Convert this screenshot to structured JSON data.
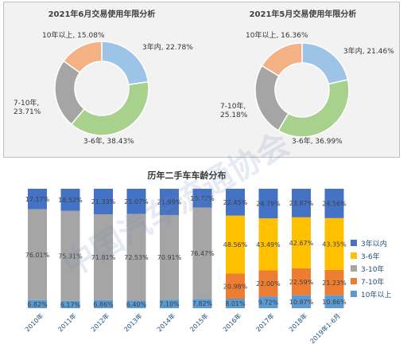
{
  "donuts": [
    {
      "title": "2021年6月交易使用年限分析",
      "slices": [
        {
          "name": "3年内",
          "value": 22.78,
          "label": "3年内, 22.78%",
          "color": "#9dc3e6"
        },
        {
          "name": "3-6年",
          "value": 38.43,
          "label": "3-6年, 38.43%",
          "color": "#a9d18e"
        },
        {
          "name": "7-10年",
          "value": 23.71,
          "label": "7-10年,\n23.71%",
          "color": "#a5a5a5"
        },
        {
          "name": "10年以上",
          "value": 15.08,
          "label": "10年以上, 15.08%",
          "color": "#f4b183"
        }
      ]
    },
    {
      "title": "2021年5月交易使用年限分析",
      "slices": [
        {
          "name": "3年内",
          "value": 21.46,
          "label": "3年内, 21.46%",
          "color": "#9dc3e6"
        },
        {
          "name": "3-6年",
          "value": 36.99,
          "label": "3-6年, 36.99%",
          "color": "#a9d18e"
        },
        {
          "name": "7-10年",
          "value": 25.18,
          "label": "7-10年,\n25.18%",
          "color": "#a5a5a5"
        },
        {
          "name": "10年以上",
          "value": 16.36,
          "label": "10年以上, 16.36%",
          "color": "#f4b183"
        }
      ]
    }
  ],
  "chart_data": {
    "type": "bar",
    "stacked": true,
    "title": "历年二手车车龄分布",
    "categories": [
      "2010年",
      "2011年",
      "2012年",
      "2013年",
      "2014年",
      "2015年",
      "2016年",
      "2017年",
      "2018年",
      "2019年1-6月"
    ],
    "series": [
      {
        "name": "10年以上",
        "color": "#5b9bd5",
        "values": [
          6.82,
          6.17,
          6.86,
          6.4,
          7.1,
          7.82,
          8.01,
          9.72,
          10.87,
          10.86
        ],
        "labels": [
          "6.82%",
          "6.17%",
          "6.86%",
          "6.40%",
          "7.10%",
          "7.82%",
          "8.01%",
          "9.72%",
          "10.87%",
          "10.86%"
        ]
      },
      {
        "name": "7-10年",
        "color": "#ed7d31",
        "values": [
          null,
          null,
          null,
          null,
          null,
          null,
          20.98,
          22.0,
          22.59,
          21.23
        ],
        "labels": [
          "",
          "",
          "",
          "",
          "",
          "",
          "20.98%",
          "22.00%",
          "22.59%",
          "21.23%"
        ]
      },
      {
        "name": "3-10年",
        "color": "#a5a5a5",
        "values": [
          76.01,
          75.31,
          71.81,
          72.53,
          70.91,
          76.47,
          null,
          null,
          null,
          null
        ],
        "labels": [
          "76.01%",
          "75.31%",
          "71.81%",
          "72.53%",
          "70.91%",
          "76.47%",
          "",
          "",
          "",
          ""
        ]
      },
      {
        "name": "3-6年",
        "color": "#ffc000",
        "values": [
          null,
          null,
          null,
          null,
          null,
          null,
          48.56,
          43.49,
          42.67,
          43.35
        ],
        "labels": [
          "",
          "",
          "",
          "",
          "",
          "",
          "48.56%",
          "43.49%",
          "42.67%",
          "43.35%"
        ]
      },
      {
        "name": "3年以内",
        "color": "#4472c4",
        "values": [
          17.17,
          18.52,
          21.33,
          21.07,
          21.99,
          15.72,
          22.45,
          24.79,
          23.87,
          24.56
        ],
        "labels": [
          "17.17%",
          "18.52%",
          "21.33%",
          "21.07%",
          "21.99%",
          "15.72%",
          "22.45%",
          "24.79%",
          "23.87%",
          "24.56%"
        ]
      }
    ],
    "legend_order": [
      "3年以内",
      "3-6年",
      "3-10年",
      "7-10年",
      "10年以上"
    ],
    "legend_position": "right"
  },
  "watermark": "中国汽车流通协会"
}
